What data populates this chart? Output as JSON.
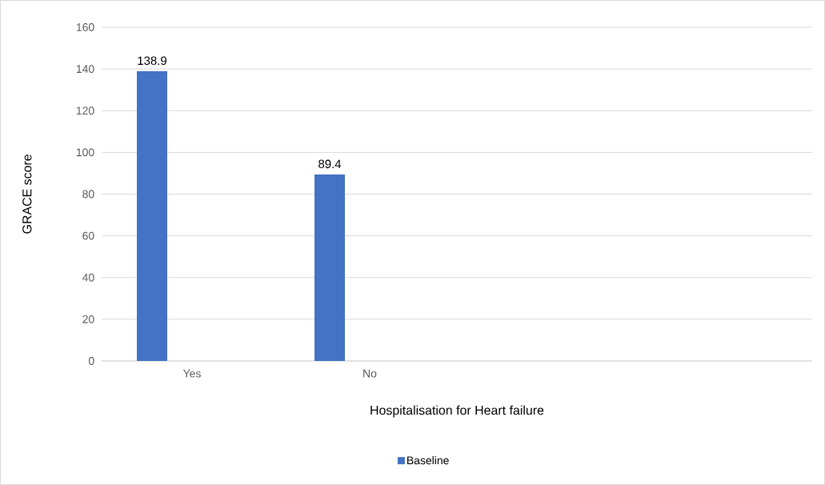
{
  "chart_data": {
    "type": "bar",
    "xlabel": "Hospitalisation for Heart failure",
    "ylabel": "GRACE score",
    "categories": [
      "Yes",
      "No",
      null,
      null
    ],
    "series": [
      {
        "name": "Baseline",
        "color": "#4472c4",
        "values": [
          138.9,
          89.4,
          null,
          null
        ]
      }
    ],
    "ylim": [
      0,
      160
    ],
    "yticks": [
      0,
      20,
      40,
      60,
      80,
      100,
      120,
      140,
      160
    ],
    "grid": "y",
    "legend": "bottom",
    "data_labels": true
  }
}
